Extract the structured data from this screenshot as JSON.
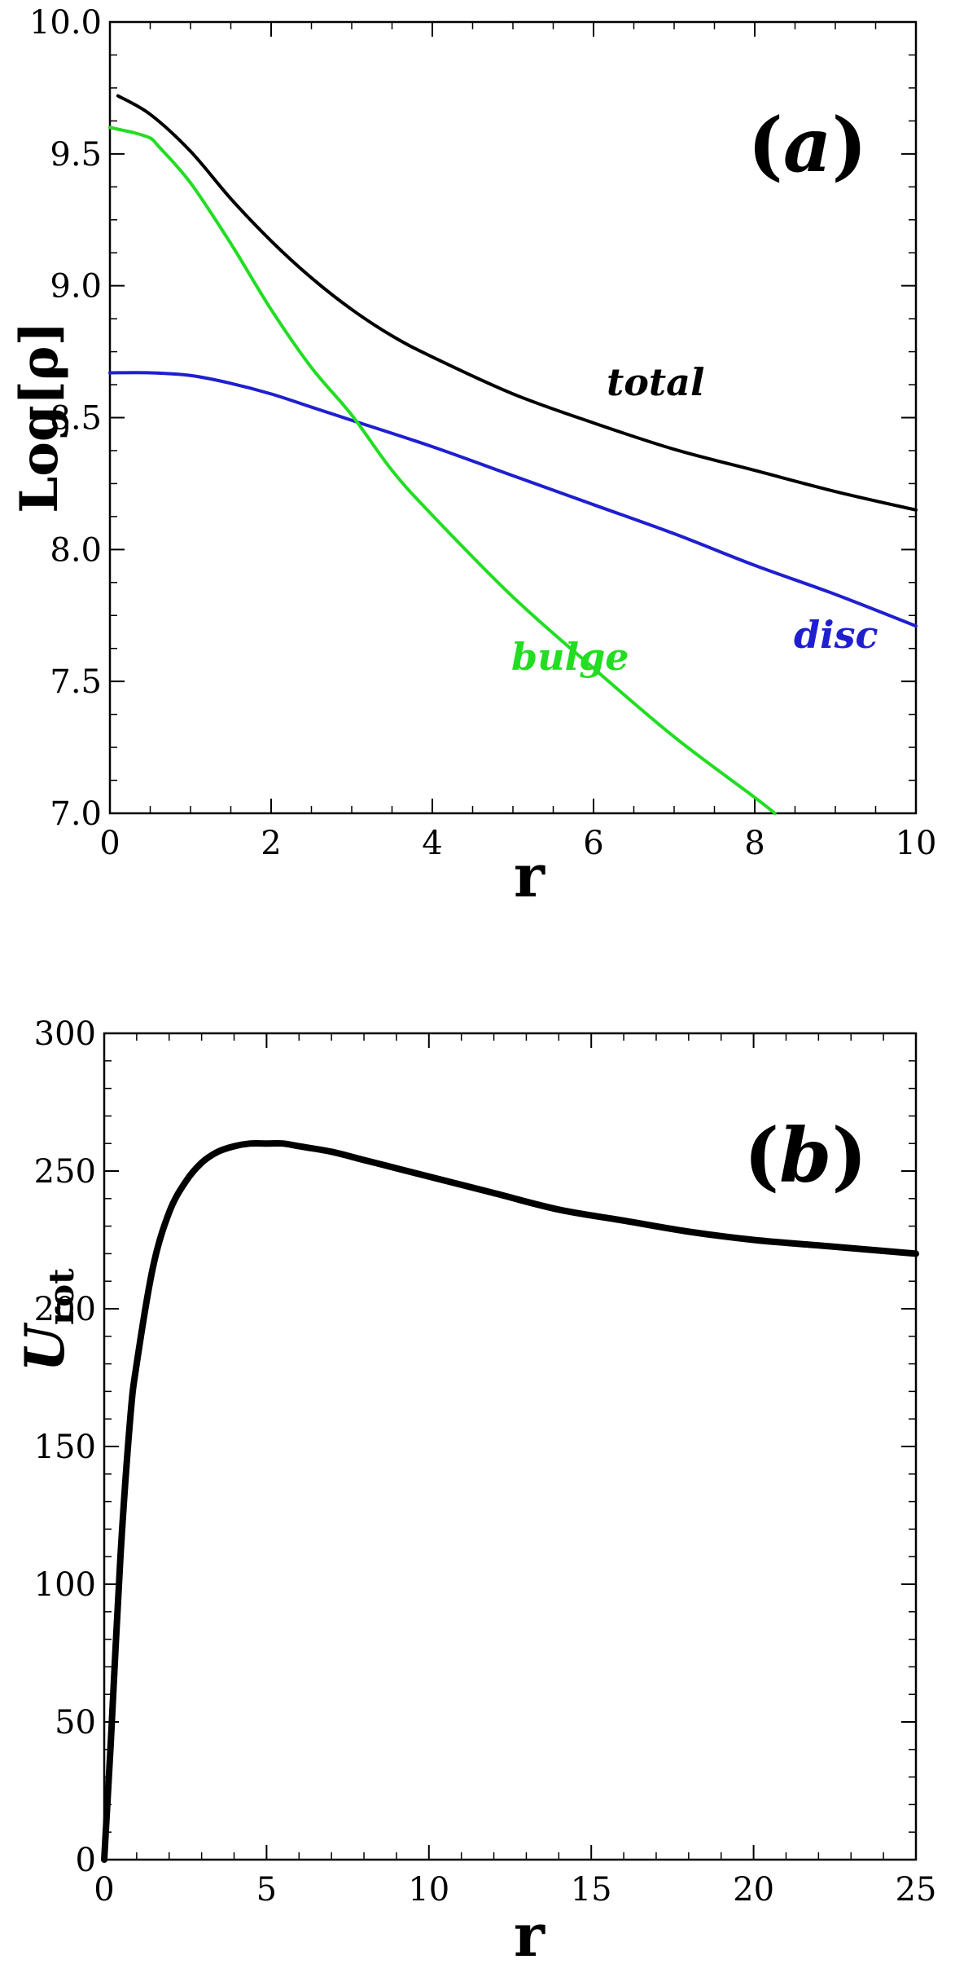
{
  "chart_data": [
    {
      "type": "line",
      "panel_label": "a",
      "xlabel": "r",
      "ylabel": "Log[ρ]",
      "xlim": [
        0,
        10
      ],
      "ylim": [
        7.0,
        10.0
      ],
      "xticks": [
        0,
        2,
        4,
        6,
        8,
        10
      ],
      "yticks": [
        7.0,
        7.5,
        8.0,
        8.5,
        9.0,
        9.5,
        10.0
      ],
      "ytick_labels": [
        "7.0",
        "7.5",
        "8.0",
        "8.5",
        "9.0",
        "9.5",
        "10.0"
      ],
      "grid": false,
      "series": [
        {
          "name": "total",
          "color": "#000000",
          "x": [
            0.1,
            0.5,
            1.0,
            1.5,
            2.0,
            2.5,
            3.0,
            3.5,
            4.0,
            5.0,
            6.0,
            7.0,
            8.0,
            9.0,
            10.0
          ],
          "y": [
            9.72,
            9.65,
            9.51,
            9.33,
            9.17,
            9.03,
            8.91,
            8.81,
            8.73,
            8.59,
            8.48,
            8.38,
            8.3,
            8.22,
            8.15
          ]
        },
        {
          "name": "disc",
          "color": "#1f1fd0",
          "x": [
            0.0,
            0.5,
            1.0,
            1.5,
            2.0,
            2.5,
            3.0,
            4.0,
            5.0,
            6.0,
            7.0,
            8.0,
            9.0,
            10.0
          ],
          "y": [
            8.67,
            8.67,
            8.66,
            8.63,
            8.59,
            8.54,
            8.49,
            8.39,
            8.28,
            8.17,
            8.06,
            7.94,
            7.83,
            7.71
          ]
        },
        {
          "name": "bulge",
          "color": "#22dd22",
          "x": [
            0.0,
            0.3,
            0.5,
            0.6,
            1.0,
            1.5,
            2.0,
            2.5,
            3.0,
            3.5,
            4.0,
            5.0,
            6.0,
            7.0,
            8.0,
            8.25
          ],
          "y": [
            9.6,
            9.58,
            9.56,
            9.53,
            9.39,
            9.16,
            8.91,
            8.69,
            8.51,
            8.3,
            8.13,
            7.82,
            7.55,
            7.29,
            7.06,
            7.0
          ]
        }
      ]
    },
    {
      "type": "line",
      "panel_label": "b",
      "xlabel": "r",
      "ylabel": "U",
      "ylabel_sub": "rot",
      "xlim": [
        0,
        25
      ],
      "ylim": [
        0,
        300
      ],
      "xticks": [
        0,
        5,
        10,
        15,
        20,
        25
      ],
      "yticks": [
        0,
        50,
        100,
        150,
        200,
        250,
        300
      ],
      "grid": false,
      "series": [
        {
          "color": "#000000",
          "x": [
            0.0,
            0.2,
            0.5,
            0.8,
            1.0,
            1.5,
            2.0,
            2.5,
            3.0,
            3.5,
            4.0,
            4.5,
            5.0,
            5.5,
            6.0,
            7.0,
            8.0,
            9.0,
            10.0,
            12.0,
            14.0,
            16.0,
            18.0,
            20.0,
            22.0,
            25.0
          ],
          "y": [
            0,
            42,
            110,
            160,
            180,
            215,
            235,
            246,
            253,
            257,
            259,
            260,
            260,
            260,
            259,
            257,
            254,
            251,
            248,
            242,
            236,
            232,
            228,
            225,
            223,
            220
          ]
        }
      ]
    }
  ]
}
